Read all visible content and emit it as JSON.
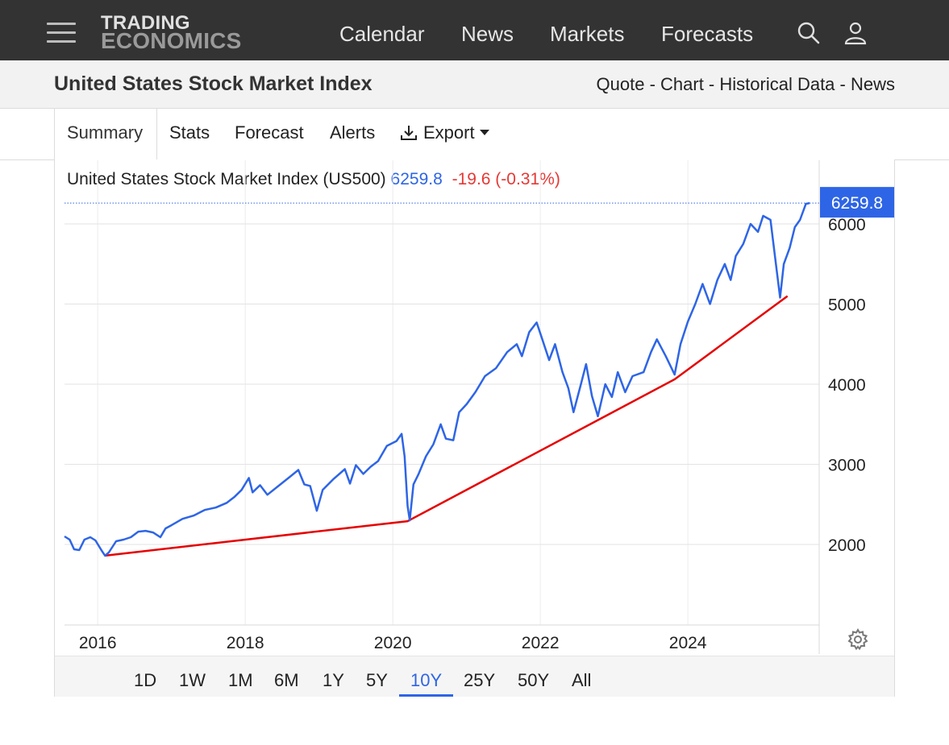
{
  "nav": {
    "logo_line1": "TRADING",
    "logo_line2": "ECONOMICS",
    "links": [
      "Calendar",
      "News",
      "Markets",
      "Forecasts"
    ]
  },
  "header": {
    "title": "United States Stock Market Index",
    "links": [
      "Quote",
      "Chart",
      "Historical Data",
      "News"
    ],
    "separator": " - "
  },
  "tabs": [
    "Summary",
    "Stats",
    "Forecast",
    "Alerts",
    "Export"
  ],
  "chart_header": {
    "name": "United States Stock Market Index (US500)",
    "value": "6259.8",
    "change": "-19.6 (-0.31%)"
  },
  "range_buttons": [
    "1D",
    "1W",
    "1M",
    "6M",
    "1Y",
    "5Y",
    "10Y",
    "25Y",
    "50Y",
    "All"
  ],
  "range_selected": "10Y",
  "colors": {
    "series": "#2e65e6",
    "trendline": "#e60000",
    "price_label_bg": "#2e65e6"
  },
  "chart_data": {
    "type": "line",
    "ylim": [
      1000,
      6500
    ],
    "xlim": [
      2015.55,
      2025.78
    ],
    "y_ticks": [
      2000,
      3000,
      4000,
      5000,
      6000
    ],
    "x_ticks": [
      {
        "x": 2016,
        "label": "2016"
      },
      {
        "x": 2018,
        "label": "2018"
      },
      {
        "x": 2020,
        "label": "2020"
      },
      {
        "x": 2022,
        "label": "2022"
      },
      {
        "x": 2024,
        "label": "2024"
      }
    ],
    "last_price_label": "6259.8",
    "series": [
      {
        "points": [
          [
            2015.55,
            2100
          ],
          [
            2015.62,
            2060
          ],
          [
            2015.68,
            1940
          ],
          [
            2015.75,
            1930
          ],
          [
            2015.82,
            2060
          ],
          [
            2015.9,
            2090
          ],
          [
            2015.97,
            2050
          ],
          [
            2016.05,
            1930
          ],
          [
            2016.1,
            1860
          ],
          [
            2016.15,
            1900
          ],
          [
            2016.25,
            2040
          ],
          [
            2016.35,
            2060
          ],
          [
            2016.45,
            2090
          ],
          [
            2016.55,
            2160
          ],
          [
            2016.65,
            2170
          ],
          [
            2016.75,
            2150
          ],
          [
            2016.85,
            2090
          ],
          [
            2016.92,
            2200
          ],
          [
            2017.0,
            2240
          ],
          [
            2017.15,
            2320
          ],
          [
            2017.3,
            2360
          ],
          [
            2017.45,
            2430
          ],
          [
            2017.6,
            2460
          ],
          [
            2017.75,
            2520
          ],
          [
            2017.85,
            2590
          ],
          [
            2017.95,
            2680
          ],
          [
            2018.05,
            2830
          ],
          [
            2018.1,
            2650
          ],
          [
            2018.2,
            2740
          ],
          [
            2018.3,
            2620
          ],
          [
            2018.45,
            2730
          ],
          [
            2018.6,
            2840
          ],
          [
            2018.72,
            2930
          ],
          [
            2018.8,
            2750
          ],
          [
            2018.88,
            2730
          ],
          [
            2018.97,
            2420
          ],
          [
            2019.05,
            2680
          ],
          [
            2019.2,
            2820
          ],
          [
            2019.35,
            2940
          ],
          [
            2019.42,
            2760
          ],
          [
            2019.5,
            2990
          ],
          [
            2019.6,
            2880
          ],
          [
            2019.7,
            2970
          ],
          [
            2019.8,
            3040
          ],
          [
            2019.92,
            3230
          ],
          [
            2020.05,
            3290
          ],
          [
            2020.12,
            3380
          ],
          [
            2020.16,
            3100
          ],
          [
            2020.2,
            2480
          ],
          [
            2020.23,
            2300
          ],
          [
            2020.28,
            2750
          ],
          [
            2020.35,
            2880
          ],
          [
            2020.45,
            3100
          ],
          [
            2020.55,
            3250
          ],
          [
            2020.65,
            3500
          ],
          [
            2020.72,
            3320
          ],
          [
            2020.82,
            3300
          ],
          [
            2020.9,
            3650
          ],
          [
            2021.0,
            3750
          ],
          [
            2021.12,
            3900
          ],
          [
            2021.25,
            4100
          ],
          [
            2021.4,
            4200
          ],
          [
            2021.55,
            4400
          ],
          [
            2021.68,
            4500
          ],
          [
            2021.75,
            4350
          ],
          [
            2021.85,
            4650
          ],
          [
            2021.95,
            4770
          ],
          [
            2022.03,
            4550
          ],
          [
            2022.12,
            4300
          ],
          [
            2022.2,
            4500
          ],
          [
            2022.3,
            4150
          ],
          [
            2022.38,
            3950
          ],
          [
            2022.45,
            3650
          ],
          [
            2022.55,
            4000
          ],
          [
            2022.62,
            4250
          ],
          [
            2022.7,
            3850
          ],
          [
            2022.78,
            3600
          ],
          [
            2022.88,
            4000
          ],
          [
            2022.97,
            3840
          ],
          [
            2023.05,
            4150
          ],
          [
            2023.15,
            3900
          ],
          [
            2023.25,
            4100
          ],
          [
            2023.4,
            4150
          ],
          [
            2023.5,
            4400
          ],
          [
            2023.58,
            4560
          ],
          [
            2023.7,
            4350
          ],
          [
            2023.82,
            4120
          ],
          [
            2023.9,
            4500
          ],
          [
            2024.0,
            4780
          ],
          [
            2024.1,
            5000
          ],
          [
            2024.2,
            5250
          ],
          [
            2024.3,
            5000
          ],
          [
            2024.4,
            5300
          ],
          [
            2024.5,
            5500
          ],
          [
            2024.58,
            5300
          ],
          [
            2024.65,
            5600
          ],
          [
            2024.75,
            5750
          ],
          [
            2024.85,
            6000
          ],
          [
            2024.95,
            5900
          ],
          [
            2025.02,
            6100
          ],
          [
            2025.12,
            6050
          ],
          [
            2025.18,
            5600
          ],
          [
            2025.25,
            5080
          ],
          [
            2025.3,
            5500
          ],
          [
            2025.38,
            5700
          ],
          [
            2025.45,
            5960
          ],
          [
            2025.52,
            6050
          ],
          [
            2025.6,
            6250
          ],
          [
            2025.65,
            6259.8
          ]
        ]
      }
    ],
    "trendline": [
      [
        2016.1,
        1860
      ],
      [
        2020.2,
        2290
      ],
      [
        2023.82,
        4060
      ],
      [
        2025.35,
        5100
      ]
    ]
  }
}
